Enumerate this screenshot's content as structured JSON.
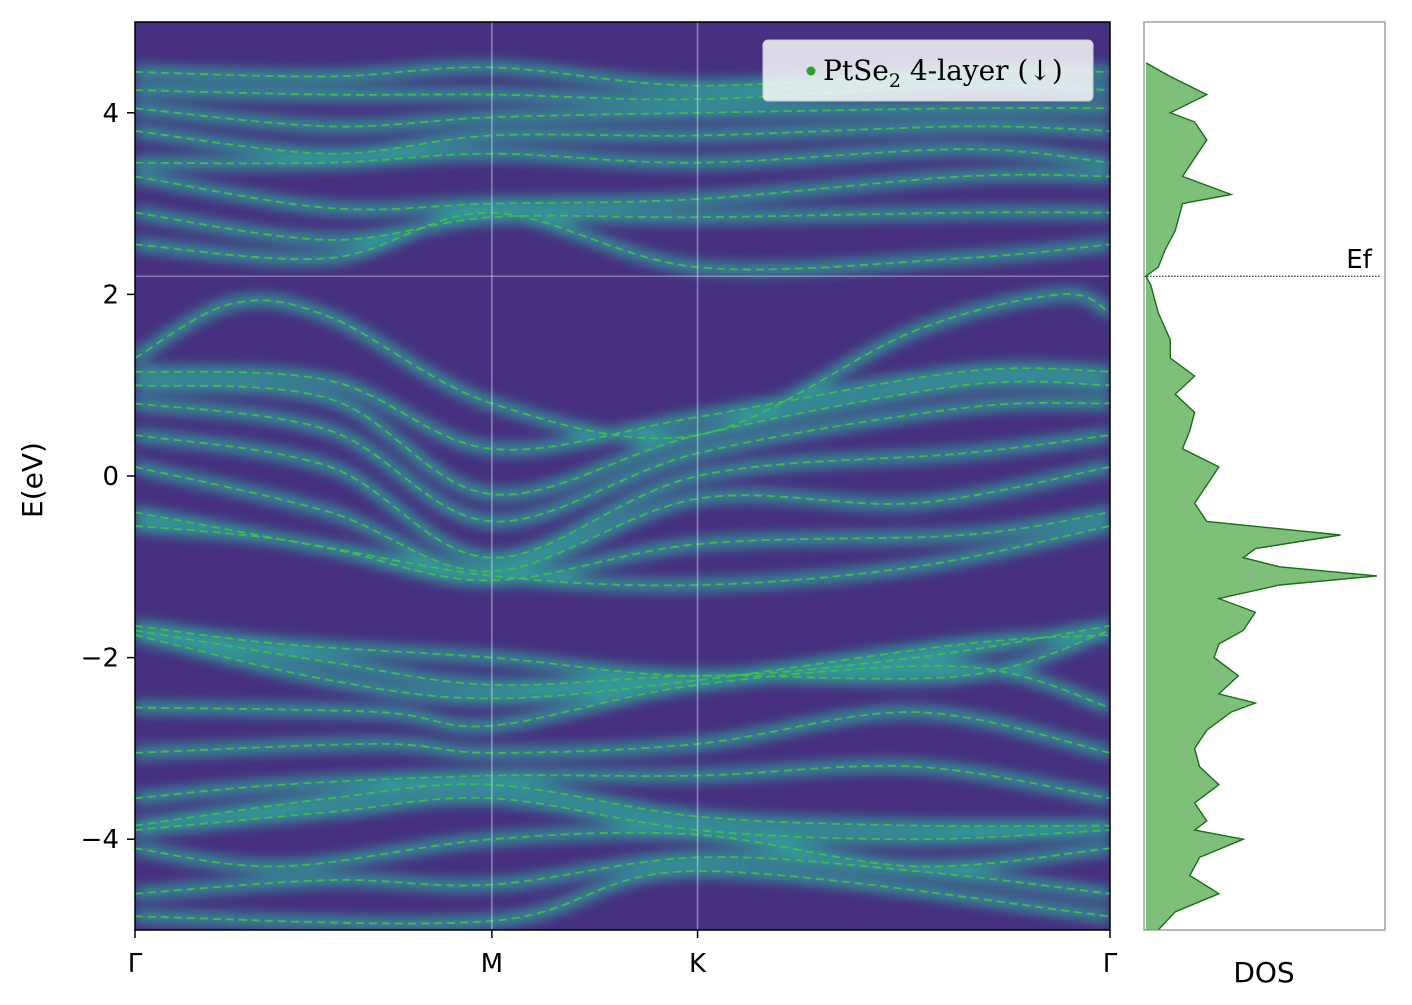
{
  "chart_data": [
    {
      "type": "heatmap",
      "panel": "band-structure",
      "ylabel": "E(eV)",
      "xlabel": "",
      "ylim": [
        -5,
        5
      ],
      "yticks": [
        -4,
        -2,
        0,
        2,
        4
      ],
      "ytick_labels": [
        "−4",
        "−2",
        "0",
        "2",
        "4"
      ],
      "kpath": [
        {
          "label": "Γ",
          "pos": 0.0
        },
        {
          "label": "M",
          "pos": 0.366
        },
        {
          "label": "K",
          "pos": 0.577
        },
        {
          "label": "Γ",
          "pos": 1.0
        }
      ],
      "fermi_level": 2.2,
      "colormap": "viridis",
      "background_color": "#46307f",
      "band_line_color": "#3dbd4f",
      "band_line_style": "dashed",
      "legend": {
        "label": "PtSe",
        "subscript": "2",
        "suffix": " 4-layer (↓)",
        "placement": "top-right",
        "marker_color": "#2ca02c"
      },
      "series": [
        {
          "values": [
            [
              0,
              -4.85
            ],
            [
              0.366,
              -4.9
            ],
            [
              0.577,
              -4.35
            ],
            [
              1,
              -4.85
            ]
          ]
        },
        {
          "values": [
            [
              0,
              -4.6
            ],
            [
              0.2,
              -4.45
            ],
            [
              0.366,
              -4.5
            ],
            [
              0.577,
              -4.2
            ],
            [
              0.8,
              -4.35
            ],
            [
              1,
              -4.6
            ]
          ]
        },
        {
          "values": [
            [
              0,
              -4.1
            ],
            [
              0.15,
              -4.3
            ],
            [
              0.366,
              -4.0
            ],
            [
              0.577,
              -3.95
            ],
            [
              0.8,
              -4.3
            ],
            [
              1,
              -4.1
            ]
          ]
        },
        {
          "values": [
            [
              0,
              -3.9
            ],
            [
              0.2,
              -3.7
            ],
            [
              0.366,
              -3.55
            ],
            [
              0.577,
              -3.9
            ],
            [
              0.8,
              -4.0
            ],
            [
              1,
              -3.9
            ]
          ]
        },
        {
          "values": [
            [
              0,
              -3.85
            ],
            [
              0.2,
              -3.55
            ],
            [
              0.366,
              -3.4
            ],
            [
              0.577,
              -3.75
            ],
            [
              0.8,
              -3.85
            ],
            [
              1,
              -3.85
            ]
          ]
        },
        {
          "values": [
            [
              0,
              -3.55
            ],
            [
              0.15,
              -3.4
            ],
            [
              0.366,
              -3.3
            ],
            [
              0.577,
              -3.3
            ],
            [
              0.8,
              -3.2
            ],
            [
              1,
              -3.55
            ]
          ]
        },
        {
          "values": [
            [
              0,
              -3.05
            ],
            [
              0.25,
              -2.95
            ],
            [
              0.366,
              -3.05
            ],
            [
              0.577,
              -2.95
            ],
            [
              0.8,
              -2.6
            ],
            [
              1,
              -3.05
            ]
          ]
        },
        {
          "values": [
            [
              0,
              -2.55
            ],
            [
              0.25,
              -2.6
            ],
            [
              0.366,
              -2.75
            ],
            [
              0.577,
              -2.3
            ],
            [
              0.85,
              -2.1
            ],
            [
              1,
              -2.55
            ]
          ]
        },
        {
          "values": [
            [
              0,
              -1.65
            ],
            [
              0.15,
              -1.85
            ],
            [
              0.366,
              -2.0
            ],
            [
              0.577,
              -2.2
            ],
            [
              0.8,
              -2.0
            ],
            [
              1,
              -1.65
            ]
          ]
        },
        {
          "values": [
            [
              0,
              -1.7
            ],
            [
              0.2,
              -2.05
            ],
            [
              0.366,
              -2.3
            ],
            [
              0.577,
              -2.2
            ],
            [
              0.85,
              -2.2
            ],
            [
              1,
              -1.7
            ]
          ]
        },
        {
          "values": [
            [
              0,
              -1.75
            ],
            [
              0.2,
              -2.25
            ],
            [
              0.366,
              -2.45
            ],
            [
              0.577,
              -2.25
            ],
            [
              0.85,
              -1.85
            ],
            [
              1,
              -1.75
            ]
          ]
        },
        {
          "values": [
            [
              0,
              -0.55
            ],
            [
              0.15,
              -0.7
            ],
            [
              0.366,
              -1.1
            ],
            [
              0.577,
              -1.2
            ],
            [
              0.8,
              -1.0
            ],
            [
              1,
              -0.55
            ]
          ]
        },
        {
          "values": [
            [
              0,
              -0.4
            ],
            [
              0.2,
              -0.8
            ],
            [
              0.366,
              -1.15
            ],
            [
              0.577,
              -0.75
            ],
            [
              0.85,
              -0.65
            ],
            [
              1,
              -0.4
            ]
          ]
        },
        {
          "values": [
            [
              0,
              0.1
            ],
            [
              0.2,
              -0.4
            ],
            [
              0.366,
              -1.05
            ],
            [
              0.577,
              -0.25
            ],
            [
              0.8,
              -0.3
            ],
            [
              1,
              0.1
            ]
          ]
        },
        {
          "values": [
            [
              0,
              0.45
            ],
            [
              0.2,
              0.1
            ],
            [
              0.366,
              -0.9
            ],
            [
              0.577,
              0.0
            ],
            [
              0.85,
              0.25
            ],
            [
              1,
              0.45
            ]
          ]
        },
        {
          "values": [
            [
              0,
              0.8
            ],
            [
              0.2,
              0.5
            ],
            [
              0.366,
              -0.5
            ],
            [
              0.577,
              0.25
            ],
            [
              0.85,
              0.75
            ],
            [
              1,
              0.8
            ]
          ]
        },
        {
          "values": [
            [
              0,
              1.0
            ],
            [
              0.2,
              0.85
            ],
            [
              0.366,
              -0.2
            ],
            [
              0.577,
              0.45
            ],
            [
              0.85,
              1.0
            ],
            [
              1,
              1.0
            ]
          ]
        },
        {
          "values": [
            [
              0,
              1.15
            ],
            [
              0.2,
              1.05
            ],
            [
              0.366,
              0.3
            ],
            [
              0.577,
              0.65
            ],
            [
              0.85,
              1.15
            ],
            [
              1,
              1.15
            ]
          ]
        },
        {
          "values": [
            [
              0,
              1.3
            ],
            [
              0.1,
              1.9
            ],
            [
              0.2,
              1.75
            ],
            [
              0.366,
              0.8
            ],
            [
              0.577,
              0.45
            ],
            [
              0.8,
              1.6
            ],
            [
              0.95,
              2.0
            ],
            [
              1,
              1.8
            ]
          ]
        },
        {
          "values": [
            [
              0,
              2.55
            ],
            [
              0.2,
              2.4
            ],
            [
              0.366,
              2.9
            ],
            [
              0.577,
              2.3
            ],
            [
              0.85,
              2.4
            ],
            [
              1,
              2.55
            ]
          ]
        },
        {
          "values": [
            [
              0,
              2.9
            ],
            [
              0.2,
              2.6
            ],
            [
              0.366,
              2.85
            ],
            [
              0.577,
              2.85
            ],
            [
              0.85,
              2.9
            ],
            [
              1,
              2.9
            ]
          ]
        },
        {
          "values": [
            [
              0,
              3.3
            ],
            [
              0.2,
              2.95
            ],
            [
              0.366,
              3.0
            ],
            [
              0.577,
              3.05
            ],
            [
              0.85,
              3.3
            ],
            [
              1,
              3.3
            ]
          ]
        },
        {
          "values": [
            [
              0,
              3.45
            ],
            [
              0.2,
              3.45
            ],
            [
              0.366,
              3.55
            ],
            [
              0.577,
              3.45
            ],
            [
              0.85,
              3.6
            ],
            [
              1,
              3.45
            ]
          ]
        },
        {
          "values": [
            [
              0,
              3.8
            ],
            [
              0.2,
              3.55
            ],
            [
              0.366,
              3.75
            ],
            [
              0.577,
              3.75
            ],
            [
              0.85,
              3.85
            ],
            [
              1,
              3.8
            ]
          ]
        },
        {
          "values": [
            [
              0,
              4.05
            ],
            [
              0.2,
              3.85
            ],
            [
              0.366,
              3.95
            ],
            [
              0.577,
              4.0
            ],
            [
              0.85,
              4.05
            ],
            [
              1,
              4.05
            ]
          ]
        },
        {
          "values": [
            [
              0,
              4.25
            ],
            [
              0.2,
              4.2
            ],
            [
              0.366,
              4.2
            ],
            [
              0.577,
              4.15
            ],
            [
              0.85,
              4.3
            ],
            [
              1,
              4.25
            ]
          ]
        },
        {
          "values": [
            [
              0,
              4.45
            ],
            [
              0.2,
              4.4
            ],
            [
              0.366,
              4.5
            ],
            [
              0.577,
              4.3
            ],
            [
              0.85,
              4.45
            ],
            [
              1,
              4.45
            ]
          ]
        }
      ]
    },
    {
      "type": "area",
      "panel": "dos",
      "xlabel": "DOS",
      "ylim": [
        -5,
        5
      ],
      "fermi_label": "Ef",
      "fill_color": "#7ec07a",
      "line_color": "#1a6e1a",
      "energy": [
        -5.0,
        -4.8,
        -4.6,
        -4.4,
        -4.2,
        -4.0,
        -3.9,
        -3.8,
        -3.6,
        -3.4,
        -3.2,
        -3.0,
        -2.8,
        -2.6,
        -2.5,
        -2.4,
        -2.2,
        -2.0,
        -1.85,
        -1.7,
        -1.5,
        -1.35,
        -1.2,
        -1.1,
        -1.0,
        -0.9,
        -0.8,
        -0.65,
        -0.5,
        -0.3,
        -0.1,
        0.1,
        0.3,
        0.5,
        0.7,
        0.9,
        1.1,
        1.3,
        1.5,
        1.8,
        2.0,
        2.1,
        2.2,
        2.3,
        2.5,
        2.7,
        3.0,
        3.1,
        3.3,
        3.5,
        3.7,
        3.9,
        4.0,
        4.2,
        4.4,
        4.55
      ],
      "values": [
        0.05,
        0.12,
        0.3,
        0.18,
        0.22,
        0.4,
        0.2,
        0.25,
        0.2,
        0.3,
        0.22,
        0.2,
        0.25,
        0.35,
        0.45,
        0.3,
        0.38,
        0.28,
        0.3,
        0.4,
        0.45,
        0.3,
        0.55,
        0.95,
        0.55,
        0.4,
        0.45,
        0.8,
        0.25,
        0.2,
        0.25,
        0.3,
        0.15,
        0.18,
        0.2,
        0.12,
        0.2,
        0.1,
        0.1,
        0.05,
        0.03,
        0.02,
        0.0,
        0.05,
        0.08,
        0.12,
        0.15,
        0.35,
        0.15,
        0.2,
        0.25,
        0.2,
        0.1,
        0.25,
        0.1,
        0.0
      ]
    }
  ]
}
